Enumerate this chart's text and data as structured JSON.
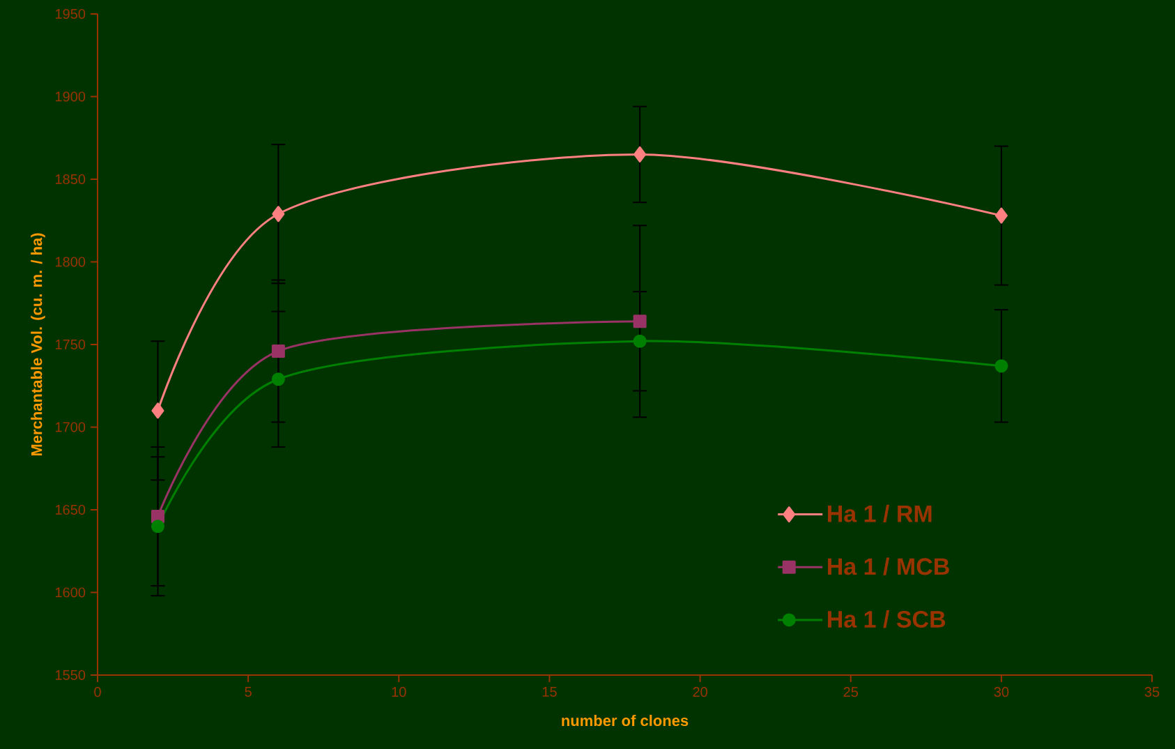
{
  "chart_data": {
    "type": "line",
    "xlabel": "number of clones",
    "ylabel": "Merchantable Vol. (cu. m. / ha)",
    "xlim": [
      0,
      35
    ],
    "xticks": [
      0,
      5,
      10,
      15,
      20,
      25,
      30,
      35
    ],
    "ylim": [
      1550,
      1950
    ],
    "yticks": [
      1550,
      1600,
      1650,
      1700,
      1750,
      1800,
      1850,
      1900,
      1950
    ],
    "grid": false,
    "legend": "bottom right",
    "line_style": "solid",
    "series": [
      {
        "name": "Ha 1 / RM",
        "color": "#ff8080",
        "marker": "diamond",
        "x": [
          2,
          6,
          18,
          30
        ],
        "values": [
          1710,
          1829,
          1865,
          1828
        ],
        "errors": [
          42,
          42,
          29,
          42
        ]
      },
      {
        "name": "Ha 1 / MCB",
        "color": "#993366",
        "marker": "square",
        "x": [
          2,
          6,
          18
        ],
        "values": [
          1646,
          1746,
          1764
        ],
        "errors": [
          42,
          43,
          58
        ]
      },
      {
        "name": "Ha 1 / SCB",
        "color": "#008000",
        "marker": "circle",
        "x": [
          2,
          6,
          18,
          30
        ],
        "values": [
          1640,
          1729,
          1752,
          1737
        ],
        "errors": [
          42,
          41,
          30,
          34
        ]
      }
    ]
  }
}
